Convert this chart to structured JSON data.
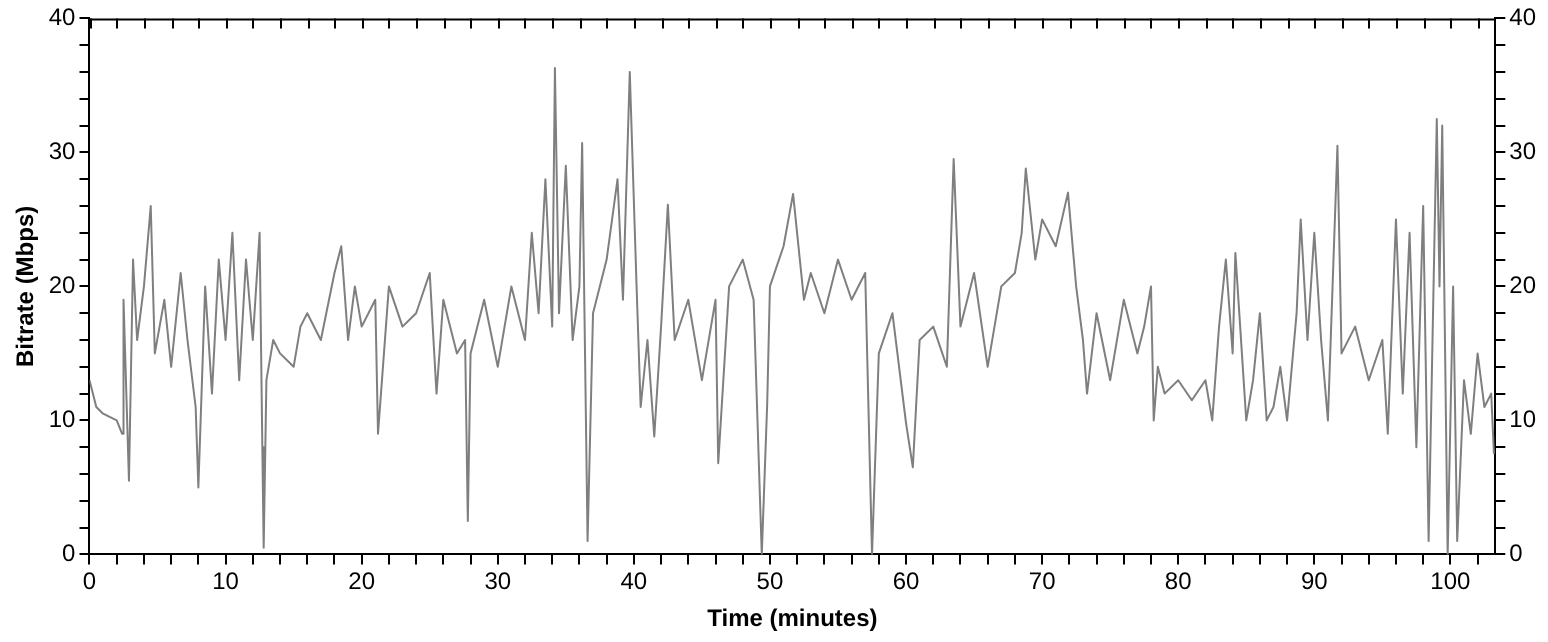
{
  "chart_data": {
    "type": "line",
    "xlabel": "Time (minutes)",
    "ylabel": "Bitrate (Mbps)",
    "xlim": [
      0,
      103.3
    ],
    "ylim": [
      0,
      40
    ],
    "y2lim": [
      0,
      40
    ],
    "xticks": [
      0,
      {
        "value": 2,
        "label": null
      },
      {
        "value": 4,
        "label": null
      },
      {
        "value": 6,
        "label": null
      },
      {
        "value": 8,
        "label": null
      },
      10,
      {
        "value": 12,
        "label": null
      },
      {
        "value": 14,
        "label": null
      },
      {
        "value": 16,
        "label": null
      },
      {
        "value": 18,
        "label": null
      },
      20,
      {
        "value": 22,
        "label": null
      },
      {
        "value": 24,
        "label": null
      },
      {
        "value": 26,
        "label": null
      },
      {
        "value": 28,
        "label": null
      },
      30,
      {
        "value": 32,
        "label": null
      },
      {
        "value": 34,
        "label": null
      },
      {
        "value": 36,
        "label": null
      },
      {
        "value": 38,
        "label": null
      },
      40,
      {
        "value": 42,
        "label": null
      },
      {
        "value": 44,
        "label": null
      },
      {
        "value": 46,
        "label": null
      },
      {
        "value": 48,
        "label": null
      },
      50,
      {
        "value": 52,
        "label": null
      },
      {
        "value": 54,
        "label": null
      },
      {
        "value": 56,
        "label": null
      },
      {
        "value": 58,
        "label": null
      },
      60,
      {
        "value": 62,
        "label": null
      },
      {
        "value": 64,
        "label": null
      },
      {
        "value": 66,
        "label": null
      },
      {
        "value": 68,
        "label": null
      },
      70,
      {
        "value": 72,
        "label": null
      },
      {
        "value": 74,
        "label": null
      },
      {
        "value": 76,
        "label": null
      },
      {
        "value": 78,
        "label": null
      },
      80,
      {
        "value": 82,
        "label": null
      },
      {
        "value": 84,
        "label": null
      },
      {
        "value": 86,
        "label": null
      },
      {
        "value": 88,
        "label": null
      },
      90,
      {
        "value": 92,
        "label": null
      },
      {
        "value": 94,
        "label": null
      },
      {
        "value": 96,
        "label": null
      },
      {
        "value": 98,
        "label": null
      },
      100,
      {
        "value": 102,
        "label": null
      }
    ],
    "yticks": [
      0,
      {
        "value": 2,
        "label": null
      },
      {
        "value": 4,
        "label": null
      },
      {
        "value": 6,
        "label": null
      },
      {
        "value": 8,
        "label": null
      },
      10,
      {
        "value": 12,
        "label": null
      },
      {
        "value": 14,
        "label": null
      },
      {
        "value": 16,
        "label": null
      },
      {
        "value": 18,
        "label": null
      },
      20,
      {
        "value": 22,
        "label": null
      },
      {
        "value": 24,
        "label": null
      },
      {
        "value": 26,
        "label": null
      },
      {
        "value": 28,
        "label": null
      },
      30,
      {
        "value": 32,
        "label": null
      },
      {
        "value": 34,
        "label": null
      },
      {
        "value": 36,
        "label": null
      },
      {
        "value": 38,
        "label": null
      },
      40
    ],
    "y2ticks": [
      0,
      {
        "value": 2,
        "label": null
      },
      {
        "value": 4,
        "label": null
      },
      {
        "value": 6,
        "label": null
      },
      {
        "value": 8,
        "label": null
      },
      10,
      {
        "value": 12,
        "label": null
      },
      {
        "value": 14,
        "label": null
      },
      {
        "value": 16,
        "label": null
      },
      {
        "value": 18,
        "label": null
      },
      20,
      {
        "value": 22,
        "label": null
      },
      {
        "value": 24,
        "label": null
      },
      {
        "value": 26,
        "label": null
      },
      {
        "value": 28,
        "label": null
      },
      30,
      {
        "value": 32,
        "label": null
      },
      {
        "value": 34,
        "label": null
      },
      {
        "value": 36,
        "label": null
      },
      {
        "value": 38,
        "label": null
      },
      40
    ],
    "grid": false,
    "legend": false,
    "marker": "none",
    "line_style": "solid",
    "series": [
      {
        "color": "#7f7f7f",
        "x": [
          0,
          0.5,
          1,
          2,
          2.4,
          2.5,
          2.9,
          3.2,
          3.5,
          4,
          4.5,
          4.8,
          5.5,
          6,
          6.7,
          7.2,
          7.8,
          8,
          8.5,
          9,
          9.5,
          10,
          10.5,
          11,
          11.5,
          12,
          12.5,
          12.7,
          12.8,
          13,
          13.5,
          14,
          15,
          15.5,
          16,
          17,
          18,
          18.5,
          19,
          19.5,
          20,
          21,
          21.2,
          22,
          23,
          24,
          25,
          25.5,
          26,
          27,
          27.6,
          27.8,
          28,
          29,
          30,
          30.5,
          31,
          32,
          32.5,
          33,
          33.5,
          34,
          34.2,
          34.5,
          35,
          35.5,
          36,
          36.2,
          36.6,
          37,
          38,
          38.8,
          39.2,
          39.7,
          40.2,
          40.5,
          41,
          41.5,
          42,
          42.5,
          43,
          44,
          45,
          46,
          46.2,
          47,
          48,
          48.8,
          49.4,
          49.8,
          50,
          51,
          51.7,
          52.5,
          53,
          54,
          55,
          56,
          57,
          57.5,
          58,
          59,
          60,
          60.5,
          61,
          62,
          63,
          63.5,
          64,
          65,
          66,
          67,
          68,
          68.5,
          68.8,
          69.5,
          70,
          71,
          71.9,
          72.5,
          73,
          73.3,
          74,
          75,
          76,
          77,
          77.5,
          78,
          78.2,
          78.5,
          79,
          80,
          81,
          82,
          82.5,
          83,
          83.5,
          84,
          84.2,
          85,
          85.5,
          86,
          86.5,
          87,
          87.5,
          88,
          88.7,
          89,
          89.5,
          90,
          90.5,
          91,
          91.7,
          92,
          93,
          94,
          95,
          95.4,
          96,
          96.5,
          97,
          97.5,
          98,
          98.4,
          99,
          99.2,
          99.4,
          99.8,
          100.2,
          100.5,
          101,
          101.5,
          102,
          102.5,
          103,
          103.2
        ],
        "values": [
          13,
          11,
          10.5,
          10,
          9,
          19,
          5.5,
          22,
          16,
          20,
          26,
          15,
          19,
          14,
          21,
          16,
          11,
          5,
          20,
          12,
          22,
          16,
          24,
          13,
          22,
          16,
          24,
          8,
          0.5,
          13,
          16,
          15,
          14,
          17,
          18,
          16,
          21,
          23,
          16,
          20,
          17,
          19,
          9,
          20,
          17,
          18,
          21,
          12,
          19,
          15,
          16,
          2.5,
          15,
          19,
          14,
          17,
          20,
          16,
          24,
          18,
          28,
          17,
          36.3,
          18,
          29,
          16,
          20,
          30.7,
          1,
          18,
          22,
          28,
          19,
          36,
          20,
          11,
          16,
          8.8,
          17,
          26.1,
          16,
          19,
          13,
          19,
          6.8,
          20,
          22,
          19,
          0,
          11.3,
          20,
          23,
          26.9,
          19,
          21,
          18,
          22,
          19,
          21,
          0,
          15,
          18,
          9.8,
          6.5,
          16,
          17,
          14,
          29.5,
          17,
          21,
          14,
          20,
          21,
          24,
          28.8,
          22,
          25,
          23,
          27,
          20,
          16,
          12,
          18,
          13,
          19,
          15,
          17,
          20,
          10,
          14,
          12,
          13,
          11.5,
          13,
          10,
          17,
          22,
          15,
          22.5,
          10,
          13,
          18,
          10,
          11,
          14,
          10,
          18,
          25,
          16,
          24,
          16,
          10,
          30.5,
          15,
          17,
          13,
          16,
          9,
          25,
          12,
          24,
          8,
          26,
          1,
          32.5,
          20,
          32,
          0,
          20,
          1,
          13,
          9,
          15,
          11,
          12,
          7.5
        ]
      }
    ]
  }
}
